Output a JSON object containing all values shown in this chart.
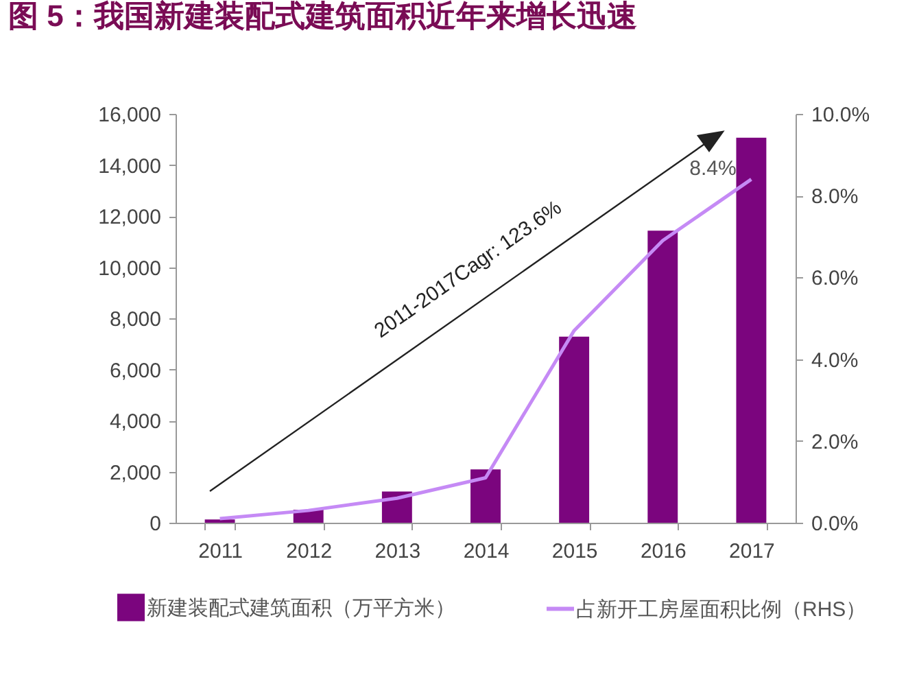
{
  "chart_data": {
    "type": "bar",
    "title": "图 5：我国新建装配式建筑面积近年来增长迅速",
    "categories": [
      "2011",
      "2012",
      "2013",
      "2014",
      "2015",
      "2016",
      "2017"
    ],
    "series": [
      {
        "name": "新建装配式建筑面积（万平方米）",
        "color": "#7b057e",
        "values": [
          130,
          510,
          1220,
          2090,
          7280,
          11430,
          15070
        ]
      },
      {
        "name": "占新开工房屋面积比例（RHS）",
        "type": "line",
        "axis": "y2",
        "color": "#c58af5",
        "values": [
          0.1,
          0.3,
          0.6,
          1.1,
          4.7,
          6.9,
          8.4
        ],
        "value_labels": [
          null,
          null,
          null,
          null,
          null,
          null,
          "8.4%"
        ]
      }
    ],
    "ylim": [
      0,
      16000
    ],
    "yticks": [
      {
        "value": 0,
        "label": "0"
      },
      {
        "value": 2000,
        "label": "2,000"
      },
      {
        "value": 4000,
        "label": "4,000"
      },
      {
        "value": 6000,
        "label": "6,000"
      },
      {
        "value": 8000,
        "label": "8,000"
      },
      {
        "value": 10000,
        "label": "10,000"
      },
      {
        "value": 12000,
        "label": "12,000"
      },
      {
        "value": 14000,
        "label": "14,000"
      },
      {
        "value": 16000,
        "label": "16,000"
      }
    ],
    "y2lim": [
      0,
      10
    ],
    "y2ticks": [
      {
        "value": 0,
        "label": "0.0%"
      },
      {
        "value": 2,
        "label": "2.0%"
      },
      {
        "value": 4,
        "label": "4.0%"
      },
      {
        "value": 6,
        "label": "6.0%"
      },
      {
        "value": 8,
        "label": "8.0%"
      },
      {
        "value": 10,
        "label": "10.0%"
      }
    ],
    "annotations": [
      "2011-2017Cagr: 123.6%"
    ],
    "legend": "bottom",
    "grid": false,
    "marker": "none"
  }
}
